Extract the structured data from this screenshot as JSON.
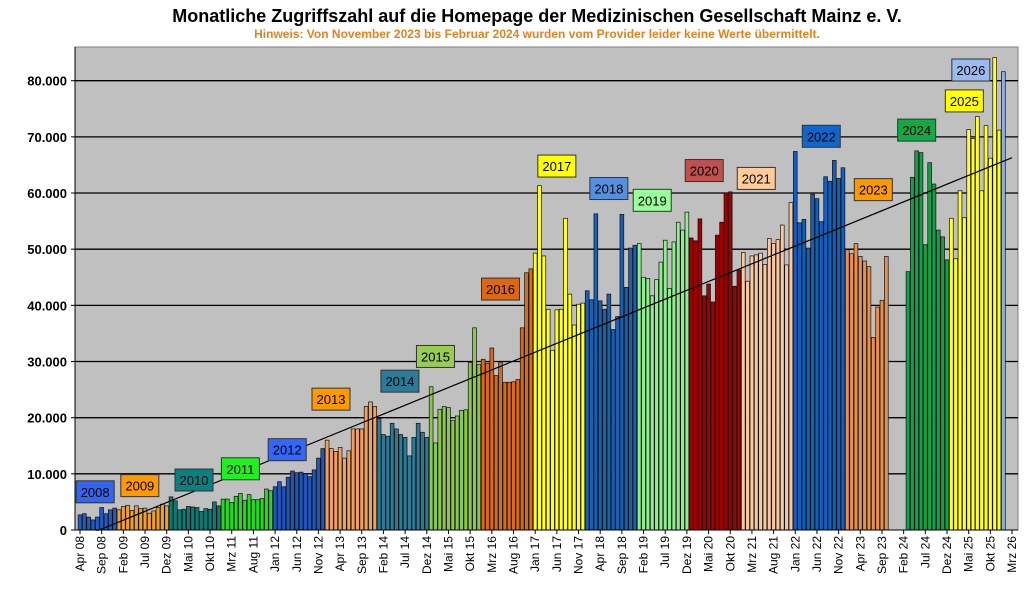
{
  "chart_data": {
    "type": "bar",
    "title": "Monatliche Zugriffszahl auf die Homepage der Medizinischen Gesellschaft Mainz e. V.",
    "subtitle": "Hinweis: Von November 2023 bis Februar 2024 wurden vom Provider leider keine Werte übermittelt.",
    "xlabel": "",
    "ylabel": "",
    "ylim": [
      0,
      86000
    ],
    "yticks": [
      0,
      10000,
      20000,
      30000,
      40000,
      50000,
      60000,
      70000,
      80000
    ],
    "ytick_labels": [
      "0",
      "10.000",
      "20.000",
      "30.000",
      "40.000",
      "50.000",
      "60.000",
      "70.000",
      "80.000"
    ],
    "grid": true,
    "legend": "none",
    "x_start": {
      "year": 2008,
      "month": 4
    },
    "x_end": {
      "year": 2026,
      "month": 3
    },
    "xtick_labels": [
      "Apr 08",
      "Sep 08",
      "Feb 09",
      "Jul 09",
      "Dez 09",
      "Mai 10",
      "Okt 10",
      "Mrz 11",
      "Aug 11",
      "Jan 12",
      "Jun 12",
      "Nov 12",
      "Apr 13",
      "Sep 13",
      "Feb 14",
      "Jul 14",
      "Dez 14",
      "Mai 15",
      "Okt 15",
      "Mrz 16",
      "Aug 16",
      "Jan 17",
      "Jun 17",
      "Nov 17",
      "Apr 18",
      "Sep 18",
      "Feb 19",
      "Jul 19",
      "Dez 19",
      "Mai 20",
      "Okt 20",
      "Mrz 21",
      "Aug 21",
      "Jan 22",
      "Jun 22",
      "Nov 22",
      "Apr 23",
      "Sep 23",
      "Feb 24",
      "Jul 24",
      "Dez 24",
      "Mai 25",
      "Okt 25",
      "Mrz 26"
    ],
    "trendline": {
      "start_value": -1400,
      "end_value": 66300
    },
    "series": [
      {
        "name": "2008",
        "color": "#1f5cc4",
        "label_color": "#3366ee",
        "start_month": 4,
        "label_pos": {
          "month_index": 3.5,
          "value": 6800
        },
        "values": [
          2700,
          2900,
          2300,
          1800,
          2300,
          4000,
          2900,
          3600,
          3900
        ]
      },
      {
        "name": "2009",
        "color": "#f0a030",
        "label_color": "#ff9900",
        "start_month": 1,
        "label_pos": {
          "month_index": 13.8,
          "value": 7900
        },
        "values": [
          3600,
          4200,
          4400,
          3500,
          4300,
          3800,
          3900,
          3000,
          3400,
          4000,
          4600,
          4300
        ]
      },
      {
        "name": "2010",
        "color": "#0b7b78",
        "label_color": "#0b8080",
        "start_month": 1,
        "label_pos": {
          "month_index": 26.3,
          "value": 8900
        },
        "values": [
          5900,
          5200,
          3600,
          3700,
          4200,
          4100,
          4000,
          3300,
          3800,
          3700,
          5000,
          4300
        ]
      },
      {
        "name": "2011",
        "color": "#22dd22",
        "label_color": "#22ee22",
        "start_month": 1,
        "label_pos": {
          "month_index": 37,
          "value": 10900
        },
        "values": [
          5500,
          5500,
          4900,
          6000,
          6500,
          5300,
          6300,
          5400,
          5400,
          5600,
          7300,
          7000
        ]
      },
      {
        "name": "2012",
        "color": "#1f55c0",
        "label_color": "#3366ff",
        "start_month": 1,
        "label_pos": {
          "month_index": 47.8,
          "value": 14300
        },
        "values": [
          7700,
          8600,
          7700,
          9400,
          10500,
          10200,
          10300,
          10000,
          9500,
          10700,
          12800,
          14500
        ]
      },
      {
        "name": "2013",
        "color": "#f0a060",
        "label_color": "#ff9900",
        "start_month": 1,
        "label_pos": {
          "month_index": 57.9,
          "value": 23300
        },
        "values": [
          16000,
          14500,
          14000,
          14700,
          12800,
          14100,
          18000,
          18000,
          18000,
          22000,
          22800,
          22000
        ]
      },
      {
        "name": "2014",
        "color": "#2b7b98",
        "label_color": "#2b7b98",
        "start_month": 1,
        "label_pos": {
          "month_index": 73.8,
          "value": 26500
        },
        "values": [
          19800,
          17000,
          16700,
          19000,
          18000,
          17000,
          16500,
          13200,
          16500,
          19000,
          17400,
          16500
        ]
      },
      {
        "name": "2015",
        "color": "#8cc850",
        "label_color": "#99cc55",
        "start_month": 1,
        "label_pos": {
          "month_index": 82,
          "value": 30900
        },
        "values": [
          25500,
          15500,
          21500,
          22000,
          21800,
          19500,
          20300,
          21300,
          21400,
          29800,
          36000,
          29500
        ]
      },
      {
        "name": "2016",
        "color": "#d86a1a",
        "label_color": "#dd6611",
        "start_month": 1,
        "label_pos": {
          "month_index": 97,
          "value": 42900
        },
        "values": [
          30400,
          29700,
          32400,
          27500,
          29900,
          26300,
          26300,
          26400,
          26800,
          36000,
          45800,
          46500
        ]
      },
      {
        "name": "2017",
        "color": "#ffff22",
        "label_color": "#ffff00",
        "start_month": 1,
        "label_pos": {
          "month_index": 110,
          "value": 64800
        },
        "values": [
          49300,
          61300,
          48800,
          39300,
          32000,
          39200,
          39300,
          55500,
          42000,
          36500,
          40200,
          40400
        ]
      },
      {
        "name": "2018",
        "color": "#1a5fb0",
        "label_color": "#5590e0",
        "start_month": 1,
        "label_pos": {
          "month_index": 122,
          "value": 60800
        },
        "values": [
          42600,
          41000,
          56300,
          40800,
          39300,
          42000,
          35700,
          38000,
          56200,
          43200,
          50200,
          50700
        ]
      },
      {
        "name": "2019",
        "color": "#90ee90",
        "label_color": "#99ff99",
        "start_month": 1,
        "label_pos": {
          "month_index": 132,
          "value": 58700
        },
        "values": [
          51000,
          45000,
          44800,
          41700,
          44600,
          47700,
          51600,
          43000,
          51300,
          54800,
          53400,
          56600
        ]
      },
      {
        "name": "2020",
        "color": "#a00000",
        "label_color": "#c05050",
        "start_month": 1,
        "label_pos": {
          "month_index": 144,
          "value": 64000
        },
        "values": [
          52000,
          51500,
          55400,
          41700,
          43800,
          40600,
          52500,
          54800,
          60000,
          60200,
          43400,
          46300
        ]
      },
      {
        "name": "2021",
        "color": "#f8c8a0",
        "label_color": "#ffcc99",
        "start_month": 1,
        "label_pos": {
          "month_index": 156,
          "value": 62600
        },
        "values": [
          49400,
          44300,
          48800,
          49000,
          49300,
          47300,
          51900,
          51000,
          51700,
          54300,
          47200,
          58300
        ]
      },
      {
        "name": "2022",
        "color": "#1060c0",
        "label_color": "#1166cc",
        "start_month": 1,
        "label_pos": {
          "month_index": 171,
          "value": 70100
        },
        "values": [
          67400,
          54700,
          55300,
          50200,
          59800,
          59000,
          54900,
          62900,
          62100,
          65800,
          62600,
          64500
        ]
      },
      {
        "name": "2023",
        "color": "#e89050",
        "label_color": "#ff9900",
        "start_month": 1,
        "label_pos": {
          "month_index": 183,
          "value": 60600
        },
        "values": [
          49900,
          49200,
          51000,
          48700,
          47900,
          46900,
          34300,
          39700,
          40900,
          48700
        ]
      },
      {
        "name": "2024",
        "color": "#14a048",
        "label_color": "#11aa44",
        "start_month": 3,
        "label_pos": {
          "month_index": 193,
          "value": 71200
        },
        "values": [
          46000,
          62800,
          67500,
          67200,
          50800,
          65400,
          61600,
          53400,
          52200,
          48100
        ]
      },
      {
        "name": "2025",
        "color": "#ffff30",
        "label_color": "#ffff00",
        "start_month": 1,
        "label_pos": {
          "month_index": 204,
          "value": 76400
        },
        "values": [
          55500,
          48300,
          60400,
          55600,
          71300,
          69700,
          73600,
          60400,
          72000,
          66200,
          84100,
          71200
        ]
      },
      {
        "name": "2026",
        "color": "#90b0e0",
        "label_color": "#99bbee",
        "start_month": 1,
        "label_pos": {
          "month_index": 205.5,
          "value": 81900
        },
        "values": [
          81600
        ]
      }
    ]
  }
}
